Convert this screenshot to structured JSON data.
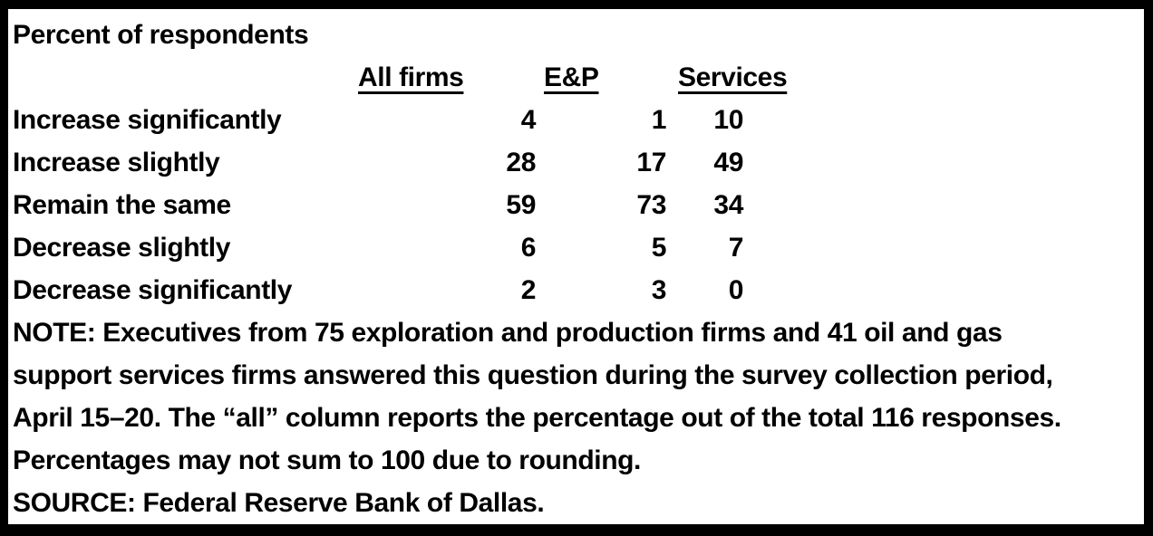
{
  "chart_data": {
    "type": "table",
    "title": "Percent of respondents",
    "categories": [
      "Increase significantly",
      "Increase slightly",
      "Remain the same",
      "Decrease slightly",
      "Decrease significantly"
    ],
    "series": [
      {
        "name": "All firms",
        "values": [
          4,
          28,
          59,
          6,
          2
        ]
      },
      {
        "name": "E&P",
        "values": [
          1,
          17,
          73,
          5,
          3
        ]
      },
      {
        "name": "Services",
        "values": [
          10,
          49,
          34,
          7,
          0
        ]
      }
    ],
    "legend_position": "top",
    "grid": false
  },
  "note": {
    "lines": [
      "NOTE: Executives from 75 exploration and production firms and 41 oil and gas",
      "support services firms answered this question during the survey collection period,",
      "April 15–20. The “all” column reports the percentage out of the total 116 responses.",
      "Percentages may not sum to 100 due to rounding."
    ]
  },
  "source": "SOURCE: Federal Reserve Bank of Dallas.",
  "colors": {
    "text": "#000000",
    "background": "#ffffff",
    "border": "#000000"
  }
}
